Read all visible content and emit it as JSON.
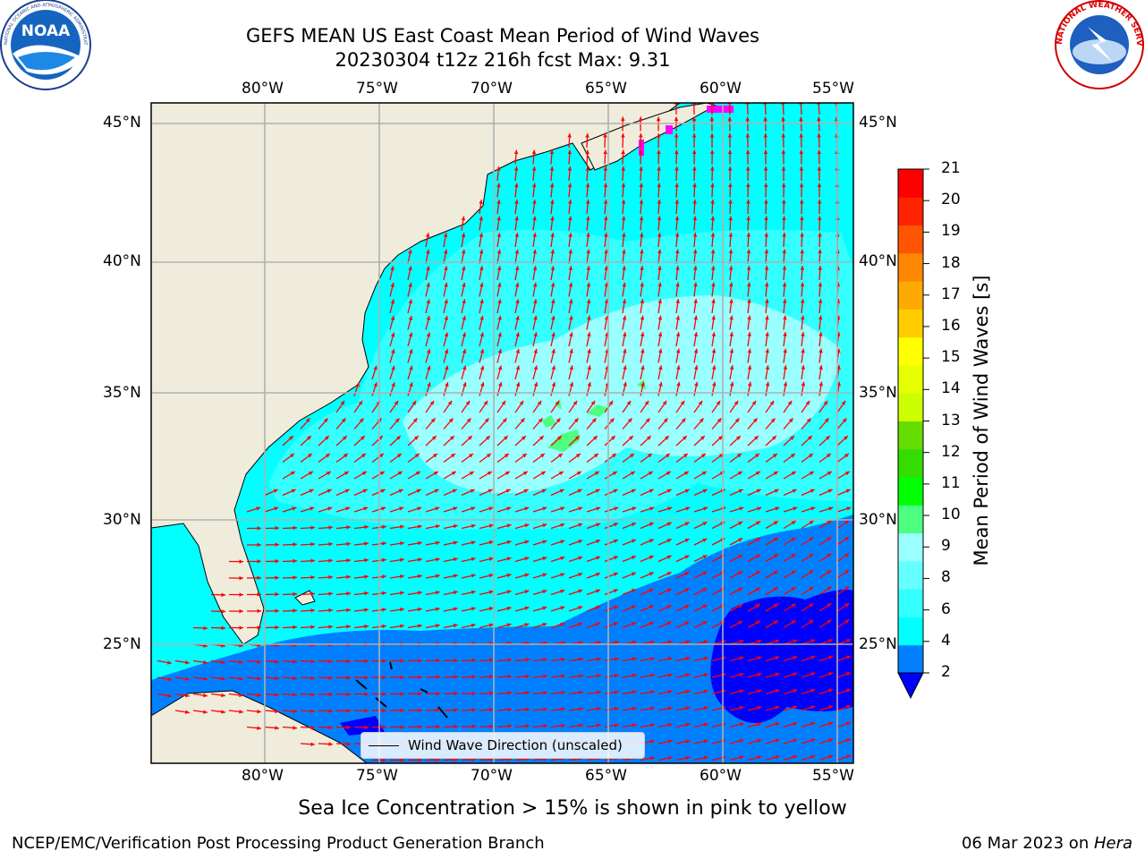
{
  "header": {
    "title_line1": "GEFS MEAN US East Coast Mean Period of Wind Waves",
    "title_line2": "20230304 t12z 216h fcst   Max: 9.31"
  },
  "logos": {
    "left": {
      "name": "noaa-logo",
      "text": "NOAA",
      "ring_text": "NATIONAL OCEANIC AND ATMOSPHERIC ADMINISTRATION · U.S. DEPARTMENT OF COMMERCE"
    },
    "right": {
      "name": "nws-logo",
      "ring_text": "NATIONAL WEATHER SERVICE"
    }
  },
  "map": {
    "lon_labels": [
      "80°W",
      "75°W",
      "70°W",
      "65°W",
      "60°W",
      "55°W"
    ],
    "lat_labels": [
      "45°N",
      "40°N",
      "35°N",
      "30°N",
      "25°N"
    ],
    "lon_range": [
      -85,
      -54.5
    ],
    "lat_range": [
      20,
      46
    ],
    "land_color": "#efecdb",
    "grid_color": "#b0b0b0",
    "arrow_color": "#ff0000"
  },
  "legend": {
    "label": "Wind Wave Direction (unscaled)"
  },
  "colorbar": {
    "label": "Mean Period of Wind Waves [s]",
    "ticks": [
      "21",
      "20",
      "19",
      "18",
      "17",
      "16",
      "15",
      "14",
      "13",
      "12",
      "11",
      "10",
      "9",
      "8",
      "6",
      "4",
      "2"
    ],
    "extend_color": "#0000ff",
    "colors": [
      "#0080ff",
      "#00ffff",
      "#33ffff",
      "#66ffff",
      "#99ffff",
      "#4dff80",
      "#00ff00",
      "#33dd00",
      "#66dd00",
      "#ccff00",
      "#e6ff00",
      "#ffff00",
      "#ffcc00",
      "#ffaa00",
      "#ff8800",
      "#ff5500",
      "#ff2200",
      "#ff0000"
    ]
  },
  "note": "Sea Ice Concentration > 15% is shown in pink to yellow",
  "footer": {
    "left": "NCEP/EMC/Verification Post Processing Product Generation Branch",
    "date": "06 Mar 2023 on ",
    "machine": "Hera"
  }
}
